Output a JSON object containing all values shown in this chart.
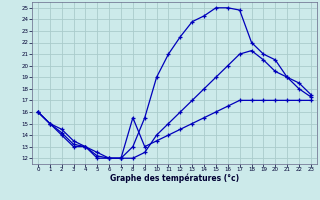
{
  "title": "Graphe des températures (°c)",
  "bg_color": "#cceaea",
  "grid_color": "#aacccc",
  "line_color": "#0000bb",
  "xlim": [
    -0.5,
    23.5
  ],
  "ylim": [
    11.5,
    25.5
  ],
  "xticks": [
    0,
    1,
    2,
    3,
    4,
    5,
    6,
    7,
    8,
    9,
    10,
    11,
    12,
    13,
    14,
    15,
    16,
    17,
    18,
    19,
    20,
    21,
    22,
    23
  ],
  "yticks": [
    12,
    13,
    14,
    15,
    16,
    17,
    18,
    19,
    20,
    21,
    22,
    23,
    24,
    25
  ],
  "line1_x": [
    0,
    1,
    2,
    3,
    4,
    5,
    6,
    7,
    8,
    9,
    10,
    11,
    12,
    13,
    14,
    15,
    16,
    17,
    18,
    19,
    20,
    21,
    22,
    23
  ],
  "line1_y": [
    16,
    15,
    14,
    13,
    13,
    12,
    12,
    12,
    13,
    15.5,
    19,
    21,
    22.5,
    23.8,
    24.3,
    25,
    25,
    24.8,
    22,
    21,
    20.5,
    19,
    18.5,
    17.5
  ],
  "line2_x": [
    0,
    1,
    2,
    3,
    4,
    5,
    6,
    7,
    8,
    9,
    10,
    11,
    12,
    13,
    14,
    15,
    16,
    17,
    18,
    19,
    20,
    21,
    22,
    23
  ],
  "line2_y": [
    16,
    15,
    14.5,
    13.5,
    13,
    12.5,
    12,
    12,
    12,
    12.5,
    14,
    15,
    16,
    17,
    18,
    19,
    20,
    21,
    21.3,
    20.5,
    19.5,
    19,
    18,
    17.3
  ],
  "line3_x": [
    0,
    1,
    2,
    3,
    4,
    5,
    6,
    7,
    8,
    9,
    10,
    11,
    12,
    13,
    14,
    15,
    16,
    17,
    18,
    19,
    20,
    21,
    22,
    23
  ],
  "line3_y": [
    16,
    15,
    14.2,
    13.2,
    13,
    12.2,
    12,
    12,
    15.5,
    13,
    13.5,
    14,
    14.5,
    15,
    15.5,
    16,
    16.5,
    17,
    17,
    17,
    17,
    17,
    17,
    17
  ]
}
